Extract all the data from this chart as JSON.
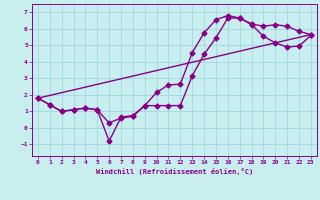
{
  "xlabel": "Windchill (Refroidissement éolien,°C)",
  "bg_color": "#c8eef0",
  "grid_color": "#a0d8dc",
  "line_color": "#880088",
  "xlim": [
    -0.5,
    23.5
  ],
  "ylim": [
    -1.7,
    7.5
  ],
  "xticks": [
    0,
    1,
    2,
    3,
    4,
    5,
    6,
    7,
    8,
    9,
    10,
    11,
    12,
    13,
    14,
    15,
    16,
    17,
    18,
    19,
    20,
    21,
    22,
    23
  ],
  "yticks": [
    -1,
    0,
    1,
    2,
    3,
    4,
    5,
    6,
    7
  ],
  "line1_x": [
    0,
    1,
    2,
    3,
    4,
    5,
    6,
    7,
    8,
    9,
    10,
    11,
    12,
    13,
    14,
    15,
    16,
    17,
    18,
    19,
    20,
    21,
    22,
    23
  ],
  "line1_y": [
    1.8,
    1.4,
    1.0,
    1.1,
    1.2,
    1.1,
    -0.8,
    0.65,
    0.75,
    1.35,
    2.15,
    2.6,
    2.65,
    4.55,
    5.75,
    6.55,
    6.8,
    6.65,
    6.3,
    6.15,
    6.25,
    6.15,
    5.85,
    5.65
  ],
  "line2_x": [
    0,
    1,
    2,
    3,
    4,
    5,
    6,
    7,
    8,
    9,
    10,
    11,
    12,
    13,
    14,
    15,
    16,
    17,
    18,
    19,
    20,
    21,
    22,
    23
  ],
  "line2_y": [
    1.8,
    1.4,
    1.0,
    1.1,
    1.2,
    1.1,
    0.3,
    0.6,
    0.7,
    1.35,
    1.35,
    1.35,
    1.35,
    3.15,
    4.45,
    5.45,
    6.65,
    6.65,
    6.25,
    5.55,
    5.15,
    4.9,
    4.95,
    5.6
  ],
  "line3_x": [
    0,
    23
  ],
  "line3_y": [
    1.8,
    5.65
  ],
  "marker_size": 2.5,
  "line_width": 1.0
}
